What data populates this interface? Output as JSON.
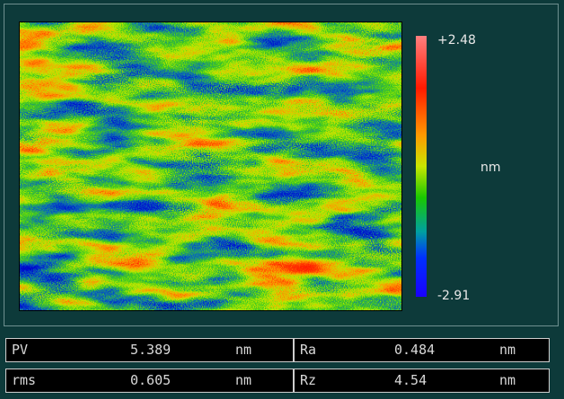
{
  "colorbar": {
    "max": "+2.48",
    "min": "-2.91",
    "unit": "nm"
  },
  "stats": [
    [
      {
        "label": "PV",
        "value": "5.389",
        "unit": "nm"
      },
      {
        "label": "Ra",
        "value": "0.484",
        "unit": "nm"
      }
    ],
    [
      {
        "label": "rms",
        "value": "0.605",
        "unit": "nm"
      },
      {
        "label": "Rz",
        "value": "4.54",
        "unit": "nm"
      }
    ]
  ]
}
